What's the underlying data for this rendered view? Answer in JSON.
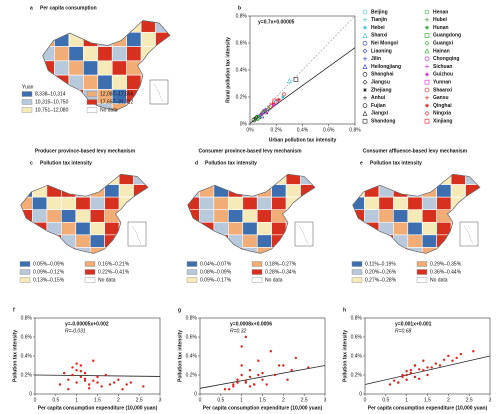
{
  "chart_data": [
    {
      "type": "map",
      "panel": "a",
      "title": "Per capita consumption",
      "legend_title": "Yuan",
      "legend": [
        {
          "label": "8,338–10,314",
          "color": "#3d6fb0"
        },
        {
          "label": "10,315–10,750",
          "color": "#b9c9dc"
        },
        {
          "label": "10,751–12,080",
          "color": "#f6eab9"
        },
        {
          "label": "12,087–17,656",
          "color": "#f2ad77"
        },
        {
          "label": "17,657–31,712",
          "color": "#d7301f"
        },
        {
          "label": "No data",
          "color": "#ffffff"
        }
      ]
    },
    {
      "type": "scatter",
      "panel": "b",
      "equation": "y=0.7x+0.00005",
      "x_label": "Urban pollution tax intensity",
      "y_label": "Rural pollution tax intensity",
      "xlim": [
        0,
        0.8
      ],
      "ylim": [
        0,
        0.8
      ],
      "xticks": [
        {
          "value": 0,
          "label": "0%"
        },
        {
          "value": 0.2,
          "label": "0.2%"
        },
        {
          "value": 0.4,
          "label": "0.4%"
        },
        {
          "value": 0.6,
          "label": "0.6%"
        },
        {
          "value": 0.8,
          "label": "0.8%"
        }
      ],
      "yticks": [
        {
          "value": 0,
          "label": "0%"
        },
        {
          "value": 0.2,
          "label": "0.2%"
        },
        {
          "value": 0.4,
          "label": "0.4%"
        },
        {
          "value": 0.6,
          "label": "0.6%"
        },
        {
          "value": 0.8,
          "label": "0.8%"
        }
      ],
      "trend": {
        "slope": 0.7,
        "intercept": 0.005
      },
      "series": [
        {
          "name": "Beijing",
          "color": "#2ec4d8",
          "marker": "circle",
          "x": [
            0.06
          ],
          "values": [
            0.05
          ]
        },
        {
          "name": "Tianjin",
          "color": "#2ec4d8",
          "marker": "plus",
          "x": [
            0.1
          ],
          "values": [
            0.08
          ]
        },
        {
          "name": "Hebei",
          "color": "#2ec4d8",
          "marker": "star",
          "x": [
            0.25
          ],
          "values": [
            0.2
          ]
        },
        {
          "name": "Shanxi",
          "color": "#2ec4d8",
          "marker": "triangle",
          "x": [
            0.3
          ],
          "values": [
            0.32
          ]
        },
        {
          "name": "Nei Mongol",
          "color": "#1f3fbf",
          "marker": "circle",
          "x": [
            0.2
          ],
          "values": [
            0.16
          ]
        },
        {
          "name": "Liaoning",
          "color": "#1f3fbf",
          "marker": "diamond",
          "x": [
            0.12
          ],
          "values": [
            0.1
          ]
        },
        {
          "name": "Jilin",
          "color": "#1f3fbf",
          "marker": "plus",
          "x": [
            0.08
          ],
          "values": [
            0.07
          ]
        },
        {
          "name": "Heilongjiang",
          "color": "#1f3fbf",
          "marker": "triangle",
          "x": [
            0.09
          ],
          "values": [
            0.06
          ]
        },
        {
          "name": "Shanghai",
          "color": "#222222",
          "marker": "circle",
          "x": [
            0.03
          ],
          "values": [
            0.03
          ]
        },
        {
          "name": "Jiangsu",
          "color": "#222222",
          "marker": "diamond",
          "x": [
            0.05
          ],
          "values": [
            0.05
          ]
        },
        {
          "name": "Zhejiang",
          "color": "#222222",
          "marker": "star",
          "x": [
            0.04
          ],
          "values": [
            0.04
          ]
        },
        {
          "name": "Anhui",
          "color": "#222222",
          "marker": "plus",
          "x": [
            0.09
          ],
          "values": [
            0.08
          ]
        },
        {
          "name": "Fujian",
          "color": "#222222",
          "marker": "circle",
          "x": [
            0.07
          ],
          "values": [
            0.05
          ]
        },
        {
          "name": "Jiangxi",
          "color": "#222222",
          "marker": "triangle",
          "x": [
            0.12
          ],
          "values": [
            0.09
          ]
        },
        {
          "name": "Shandong",
          "color": "#222222",
          "marker": "square",
          "x": [
            0.35
          ],
          "values": [
            0.33
          ]
        },
        {
          "name": "Henan",
          "color": "#2aa52a",
          "marker": "circle",
          "x": [
            0.15
          ],
          "values": [
            0.12
          ]
        },
        {
          "name": "Hubei",
          "color": "#2aa52a",
          "marker": "plus",
          "x": [
            0.1
          ],
          "values": [
            0.09
          ]
        },
        {
          "name": "Hunan",
          "color": "#2aa52a",
          "marker": "star",
          "x": [
            0.11
          ],
          "values": [
            0.1
          ]
        },
        {
          "name": "Guangdong",
          "color": "#2aa52a",
          "marker": "square",
          "x": [
            0.06
          ],
          "values": [
            0.05
          ]
        },
        {
          "name": "Guangxi",
          "color": "#2aa52a",
          "marker": "diamond",
          "x": [
            0.14
          ],
          "values": [
            0.11
          ]
        },
        {
          "name": "Hainan",
          "color": "#2aa52a",
          "marker": "triangle",
          "x": [
            0.05
          ],
          "values": [
            0.04
          ]
        },
        {
          "name": "Chongqing",
          "color": "#d02fd0",
          "marker": "circle",
          "x": [
            0.13
          ],
          "values": [
            0.1
          ]
        },
        {
          "name": "Sichuan",
          "color": "#d02fd0",
          "marker": "plus",
          "x": [
            0.08
          ],
          "values": [
            0.07
          ]
        },
        {
          "name": "Guizhou",
          "color": "#d02fd0",
          "marker": "star",
          "x": [
            0.18
          ],
          "values": [
            0.14
          ]
        },
        {
          "name": "Yunnan",
          "color": "#d02fd0",
          "marker": "square",
          "x": [
            0.11
          ],
          "values": [
            0.09
          ]
        },
        {
          "name": "Shaanxi",
          "color": "#e02020",
          "marker": "circle",
          "x": [
            0.16
          ],
          "values": [
            0.13
          ]
        },
        {
          "name": "Gansu",
          "color": "#e02020",
          "marker": "plus",
          "x": [
            0.17
          ],
          "values": [
            0.15
          ]
        },
        {
          "name": "Qinghai",
          "color": "#e02020",
          "marker": "star",
          "x": [
            0.22
          ],
          "values": [
            0.18
          ]
        },
        {
          "name": "Ningxia",
          "color": "#e02020",
          "marker": "diamond",
          "x": [
            0.26
          ],
          "values": [
            0.22
          ]
        },
        {
          "name": "Xinjiang",
          "color": "#e02020",
          "marker": "square",
          "x": [
            0.19
          ],
          "values": [
            0.17
          ]
        }
      ]
    },
    {
      "type": "map",
      "panel": "c",
      "header": "Producer province-based levy mechanism",
      "title": "Pollution tax intensity",
      "legend": [
        {
          "label": "0.05%–0.09%",
          "color": "#3d6fb0"
        },
        {
          "label": "0.09%–0.12%",
          "color": "#b9c9dc"
        },
        {
          "label": "0.13%–0.15%",
          "color": "#f6eab9"
        },
        {
          "label": "0.16%–0.21%",
          "color": "#f2ad77"
        },
        {
          "label": "0.22%–0.41%",
          "color": "#d7301f"
        },
        {
          "label": "No data",
          "color": "#ffffff"
        }
      ]
    },
    {
      "type": "map",
      "panel": "d",
      "header": "Consumer province-based levy mechanism",
      "title": "Pollution tax intensity",
      "legend": [
        {
          "label": "0.04%–0.07%",
          "color": "#3d6fb0"
        },
        {
          "label": "0.08%–0.09%",
          "color": "#b9c9dc"
        },
        {
          "label": "0.09%–0.17%",
          "color": "#f6eab9"
        },
        {
          "label": "0.18%–0.27%",
          "color": "#f2ad77"
        },
        {
          "label": "0.28%–0.34%",
          "color": "#d7301f"
        },
        {
          "label": "No data",
          "color": "#ffffff"
        }
      ]
    },
    {
      "type": "map",
      "panel": "e",
      "header": "Consumer affluence-based levy mechanism",
      "title": "Pollution tax intensity",
      "legend": [
        {
          "label": "0.11%–0.19%",
          "color": "#3d6fb0"
        },
        {
          "label": "0.20%–0.26%",
          "color": "#b9c9dc"
        },
        {
          "label": "0.27%–0.28%",
          "color": "#f6eab9"
        },
        {
          "label": "0.29%–0.35%",
          "color": "#f2ad77"
        },
        {
          "label": "0.36%–0.44%",
          "color": "#d7301f"
        },
        {
          "label": "No data",
          "color": "#ffffff"
        }
      ]
    },
    {
      "type": "scatter",
      "panel": "f",
      "equation": "y=-0.00005x+0.002",
      "r_label": "R=-0.031",
      "x_label": "Per capita consumption expenditure (10,000 yuan)",
      "y_label": "Pollution tax intensity",
      "xlim": [
        0,
        3
      ],
      "ylim": [
        0,
        0.8
      ],
      "xticks": [
        0,
        0.5,
        1,
        1.5,
        2,
        2.5,
        3
      ],
      "yticks": [
        0,
        {
          "value": 0.2,
          "label": "0.2%"
        },
        {
          "value": 0.4,
          "label": "0.4%"
        },
        {
          "value": 0.6,
          "label": "0.6%"
        },
        {
          "value": 0.8,
          "label": "0.8%"
        }
      ],
      "trend": {
        "slope": -0.005,
        "intercept": 0.2
      },
      "series": [
        {
          "color": "#e0231c",
          "marker": "dot",
          "x": [
            0.6,
            0.8,
            0.9,
            1.0,
            1.0,
            1.1,
            1.1,
            1.2,
            1.2,
            1.3,
            1.4,
            1.5,
            1.6,
            1.7,
            1.8,
            2.0,
            2.1,
            2.3,
            2.6,
            0.7,
            0.9,
            1.0,
            1.2,
            1.3,
            1.5,
            1.9,
            2.2,
            0.8,
            1.1,
            1.4
          ],
          "values": [
            0.1,
            0.15,
            0.2,
            0.25,
            0.12,
            0.18,
            0.3,
            0.14,
            0.22,
            0.1,
            0.35,
            0.12,
            0.08,
            0.2,
            0.1,
            0.15,
            0.05,
            0.12,
            0.08,
            0.22,
            0.28,
            0.32,
            0.16,
            0.06,
            0.18,
            0.12,
            0.1,
            0.05,
            0.24,
            0.14
          ]
        }
      ]
    },
    {
      "type": "scatter",
      "panel": "g",
      "equation": "y=0.0008x+0.0006",
      "r_label": "R=0.32",
      "x_label": "Per capita consumption expenditure (10,000 yuan)",
      "y_label": "Pollution tax intensity",
      "xlim": [
        0,
        3
      ],
      "ylim": [
        0,
        0.8
      ],
      "xticks": [
        0,
        0.5,
        1,
        1.5,
        2,
        2.5,
        3
      ],
      "yticks": [
        0,
        {
          "value": 0.2,
          "label": "0.2%"
        },
        {
          "value": 0.4,
          "label": "0.4%"
        },
        {
          "value": 0.6,
          "label": "0.6%"
        },
        {
          "value": 0.8,
          "label": "0.8%"
        }
      ],
      "trend": {
        "slope": 0.08,
        "intercept": 0.06
      },
      "series": [
        {
          "color": "#e0231c",
          "marker": "dot",
          "x": [
            0.6,
            0.8,
            0.9,
            1.0,
            1.0,
            1.1,
            1.1,
            1.2,
            1.2,
            1.3,
            1.4,
            1.5,
            1.6,
            1.7,
            1.8,
            2.0,
            2.1,
            2.3,
            2.6,
            0.7,
            0.9,
            1.0,
            1.2,
            1.3,
            1.5,
            1.9,
            2.2,
            0.8,
            1.1,
            1.4
          ],
          "values": [
            0.05,
            0.1,
            0.15,
            0.2,
            0.3,
            0.12,
            0.6,
            0.08,
            0.25,
            0.1,
            0.35,
            0.15,
            0.1,
            0.45,
            0.2,
            0.3,
            0.15,
            0.38,
            0.28,
            0.05,
            0.12,
            0.5,
            0.18,
            0.1,
            0.22,
            0.3,
            0.25,
            0.08,
            0.14,
            0.2
          ]
        }
      ]
    },
    {
      "type": "scatter",
      "panel": "h",
      "equation": "y=0.001x+0.001",
      "r_label": "R=0.68",
      "x_label": "Per capita consumption expenditure (10,000 yuan)",
      "y_label": "Pollution tax intensity",
      "xlim": [
        0,
        3
      ],
      "ylim": [
        0,
        0.8
      ],
      "xticks": [
        0,
        0.5,
        1,
        1.5,
        2,
        2.5,
        3
      ],
      "yticks": [
        0,
        {
          "value": 0.2,
          "label": "0.2%"
        },
        {
          "value": 0.4,
          "label": "0.4%"
        },
        {
          "value": 0.6,
          "label": "0.6%"
        },
        {
          "value": 0.8,
          "label": "0.8%"
        }
      ],
      "trend": {
        "slope": 0.1,
        "intercept": 0.1
      },
      "series": [
        {
          "color": "#e0231c",
          "marker": "dot",
          "x": [
            0.6,
            0.8,
            0.9,
            1.0,
            1.0,
            1.1,
            1.1,
            1.2,
            1.2,
            1.3,
            1.4,
            1.5,
            1.6,
            1.7,
            1.8,
            2.0,
            2.1,
            2.3,
            2.6,
            0.7,
            0.9,
            1.0,
            1.2,
            1.3,
            1.5,
            1.9,
            2.2,
            0.8,
            1.1,
            1.4
          ],
          "values": [
            0.1,
            0.12,
            0.18,
            0.2,
            0.15,
            0.25,
            0.22,
            0.3,
            0.18,
            0.26,
            0.35,
            0.2,
            0.28,
            0.32,
            0.3,
            0.4,
            0.35,
            0.42,
            0.45,
            0.14,
            0.2,
            0.24,
            0.3,
            0.16,
            0.28,
            0.36,
            0.38,
            0.12,
            0.22,
            0.25
          ]
        }
      ]
    }
  ]
}
